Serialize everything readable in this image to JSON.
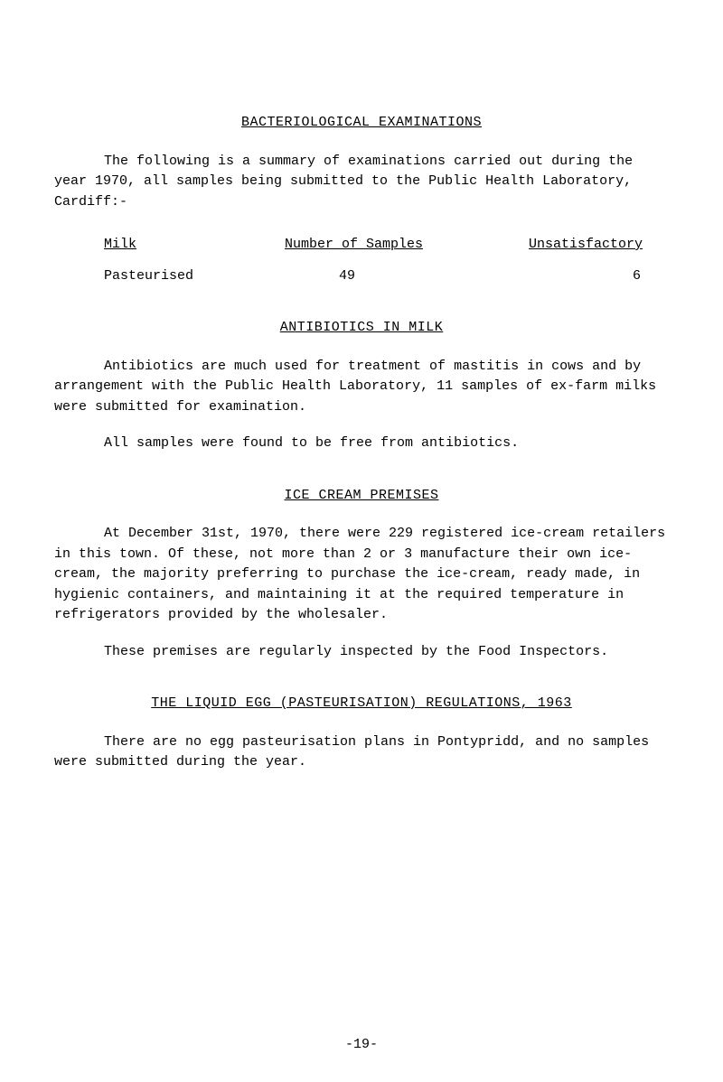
{
  "page_number": "-19-",
  "section1": {
    "title": "BACTERIOLOGICAL EXAMINATIONS",
    "intro": "The following is a summary of examinations carried out during the year 1970, all samples being submitted to the Public Health Laboratory, Cardiff:-",
    "table": {
      "headers": {
        "h1": "Milk",
        "h2": "Number of Samples",
        "h3": "Unsatisfactory"
      },
      "row": {
        "c1": "Pasteurised",
        "c2": "49",
        "c3": "6"
      }
    }
  },
  "section2": {
    "title": "ANTIBIOTICS IN MILK",
    "p1": "Antibiotics are much used for treatment of mastitis in cows and by arrangement with the Public Health Laboratory, 11 samples of ex-farm milks were submitted for examination.",
    "p2": "All samples were found to be free from antibiotics."
  },
  "section3": {
    "title": "ICE CREAM PREMISES",
    "p1": "At December 31st, 1970, there were 229 registered ice-cream retailers in this town. Of these, not more than 2 or 3 manufacture their own ice-cream, the majority preferring to purchase the ice-cream, ready made, in hygienic containers, and maintaining it at the required temperature in refrigerators provided by the wholesaler.",
    "p2": "These premises are regularly inspected by the Food Inspectors."
  },
  "section4": {
    "title": "THE LIQUID EGG (PASTEURISATION) REGULATIONS, 1963",
    "p1": "There are no egg pasteurisation plans in Pontypridd, and no samples were submitted during the year."
  },
  "style": {
    "font_family": "Courier New, monospace",
    "font_size_pt": 11,
    "text_color": "#000000",
    "background_color": "#ffffff"
  }
}
